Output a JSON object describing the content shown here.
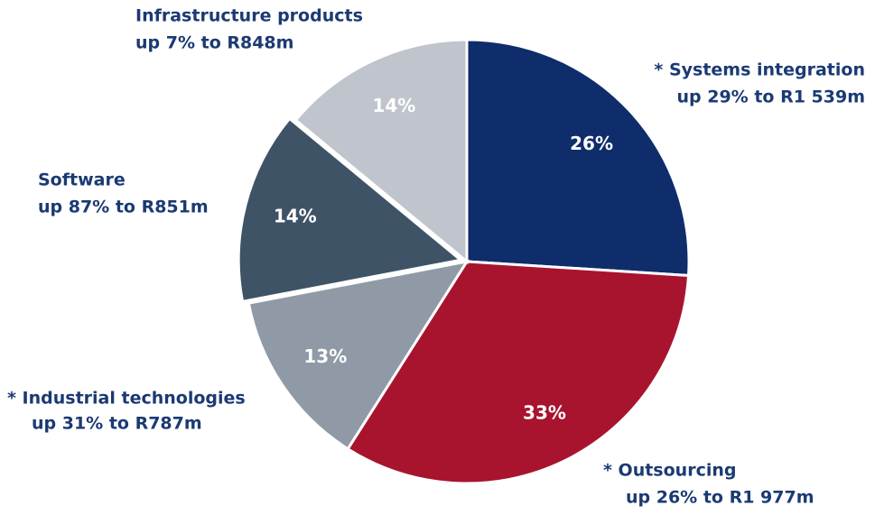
{
  "chart_data": {
    "type": "pie",
    "categories": [
      "* Systems integration",
      "* Outsourcing",
      "* Industrial technologies",
      "Software",
      "Infrastructure products"
    ],
    "subtitles": [
      "up 29% to R1 539m",
      "up 26% to R1 977m",
      "up 31% to R787m",
      "up 87% to R851m",
      "up 7% to R848m"
    ],
    "values": [
      26,
      33,
      13,
      14,
      14
    ],
    "value_labels": [
      "26%",
      "33%",
      "13%",
      "14%",
      "14%"
    ],
    "colors": [
      "#0f2d6b",
      "#a8142e",
      "#8f9aa6",
      "#3e5366",
      "#c0c5cd"
    ]
  }
}
